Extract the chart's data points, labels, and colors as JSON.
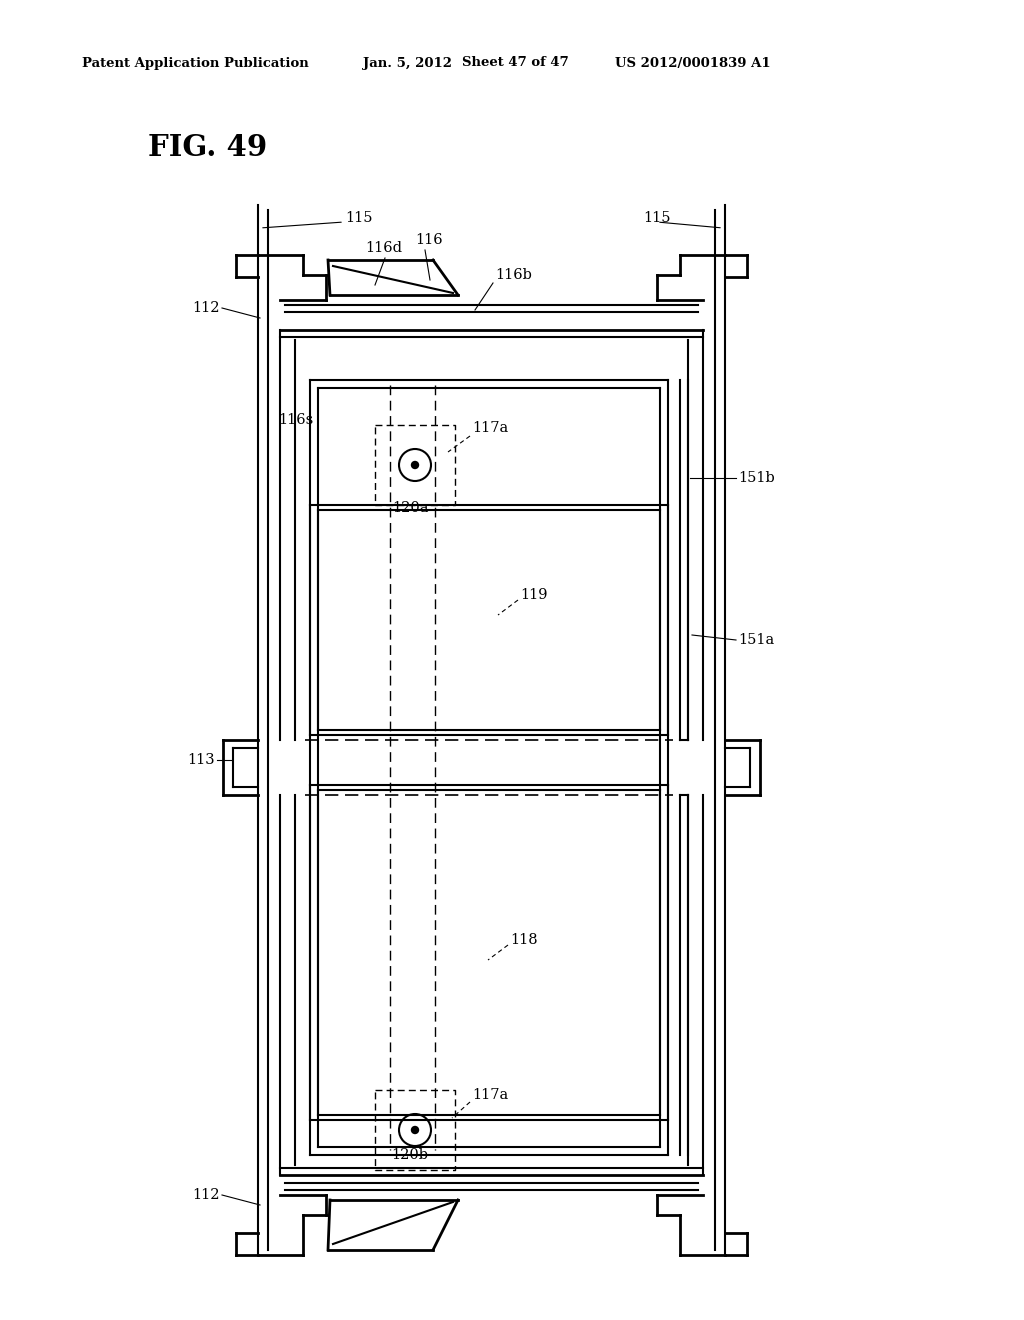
{
  "bg_color": "#ffffff",
  "header_text": "Patent Application Publication",
  "header_date": "Jan. 5, 2012",
  "header_sheet": "Sheet 47 of 47",
  "header_patent": "US 2012/0001839 A1",
  "fig_label": "FIG. 49",
  "line_color": "#000000"
}
